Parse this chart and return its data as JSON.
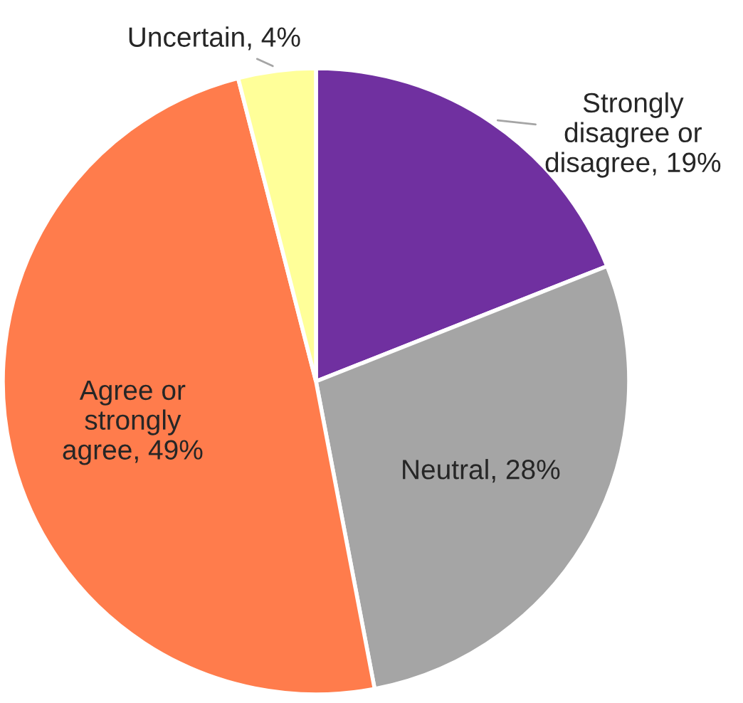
{
  "chart_data": {
    "type": "pie",
    "categories": [
      "Strongly\ndisagree or\ndisagree",
      "Neutral",
      "Agree or\nstrongly\nagree",
      "Uncertain"
    ],
    "values": [
      19,
      28,
      49,
      4
    ],
    "value_labels": [
      "19%",
      "28%",
      "49%",
      "4%"
    ],
    "colors": [
      "#7030a0",
      "#a5a5a5",
      "#ff7c4c",
      "#ffff99"
    ]
  }
}
